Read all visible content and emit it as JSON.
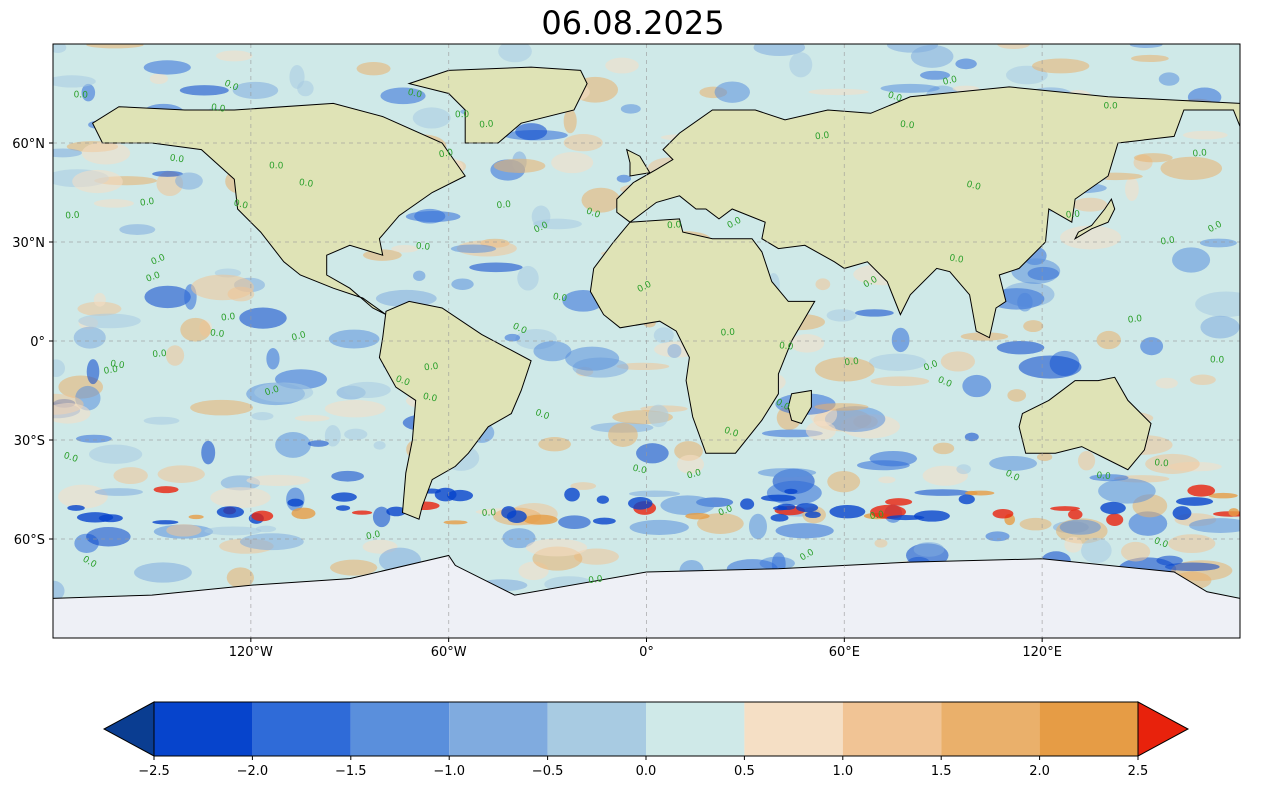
{
  "title": "06.08.2025",
  "map": {
    "projection": "plate-carree",
    "lon_range": [
      -180,
      180
    ],
    "lat_range": [
      -90,
      90
    ],
    "lat_ticks": [
      {
        "value": 60,
        "label": "60°N"
      },
      {
        "value": 30,
        "label": "30°N"
      },
      {
        "value": 0,
        "label": "0°"
      },
      {
        "value": -30,
        "label": "30°S"
      },
      {
        "value": -60,
        "label": "60°S"
      }
    ],
    "lon_ticks": [
      {
        "value": -120,
        "label": "120°W"
      },
      {
        "value": -60,
        "label": "60°W"
      },
      {
        "value": 0,
        "label": "0°"
      },
      {
        "value": 60,
        "label": "60°E"
      },
      {
        "value": 120,
        "label": "120°E"
      }
    ],
    "gridlines": true,
    "contour_label": "0.0",
    "contour_label_color": "#2ca02c",
    "land_color": "#dfe3b6",
    "ice_color": "#eef0f6",
    "ocean_color": "#cfe9e8"
  },
  "colorbar": {
    "orientation": "horizontal",
    "extend": "both",
    "boundaries": [
      -2.5,
      -2.0,
      -1.5,
      -1.0,
      -0.5,
      0.0,
      0.5,
      1.0,
      1.5,
      2.0,
      2.5
    ],
    "tick_labels": [
      "−2.5",
      "−2.0",
      "−1.5",
      "−1.0",
      "−0.5",
      "0.0",
      "0.5",
      "1.0",
      "1.5",
      "2.0",
      "2.5"
    ],
    "colors": [
      "#0644cc",
      "#2f6bd8",
      "#5a8fdc",
      "#80abdf",
      "#a8cbe2",
      "#cfe9e8",
      "#f5dfc5",
      "#f1c495",
      "#eab06b",
      "#e69c45"
    ],
    "under_color": "#0a3d91",
    "over_color": "#e8220c"
  }
}
